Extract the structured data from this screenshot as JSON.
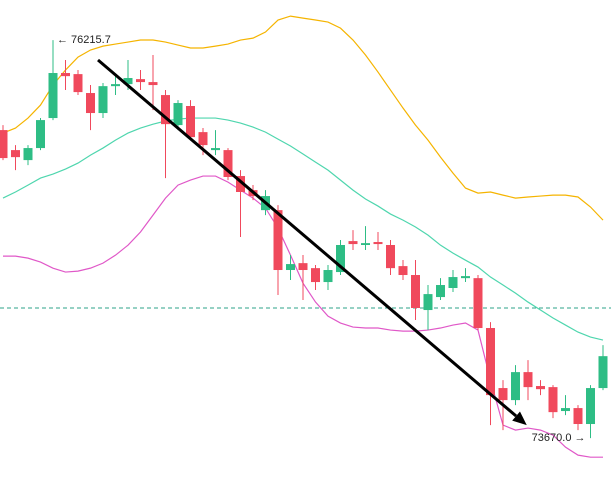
{
  "chart_data": {
    "type": "candlestick",
    "ylim": [
      73338,
      76472
    ],
    "up_color": "#2ebd85",
    "down_color": "#f0495c",
    "open": [
      75640,
      75512,
      75448,
      75525,
      75717,
      76005,
      75998,
      75877,
      75749,
      75921,
      75934,
      75966,
      75947,
      75864,
      75672,
      75794,
      75627,
      75512,
      75512,
      75346,
      75256,
      75128,
      75128,
      74745,
      74789,
      74757,
      74668,
      74732,
      74930,
      74905,
      74924,
      74905,
      74770,
      74713,
      74489,
      74572,
      74630,
      74693,
      74693,
      74374,
      73990,
      73913,
      74092,
      74003,
      73996,
      73843,
      73862,
      73760,
      73990
    ],
    "high": [
      75672,
      75544,
      75544,
      75717,
      76215.7,
      76088,
      76024,
      75928,
      75941,
      75992,
      76088,
      76024,
      76120,
      75896,
      75832,
      75832,
      75653,
      75640,
      75525,
      75384,
      75289,
      75256,
      75160,
      74841,
      74841,
      74777,
      74777,
      74937,
      75000,
      75026,
      74988,
      74937,
      74809,
      74809,
      74649,
      74693,
      74745,
      74757,
      74713,
      74412,
      74041,
      74137,
      74169,
      74041,
      74009,
      73945,
      73881,
      74009,
      74265
    ],
    "low": [
      75448,
      75384,
      75416,
      75512,
      75704,
      75896,
      75864,
      75640,
      75717,
      75864,
      75896,
      75896,
      75768,
      75333,
      75640,
      75576,
      75480,
      75480,
      75320,
      74956,
      75192,
      75096,
      74585,
      74681,
      74553,
      74617,
      74617,
      74713,
      74873,
      74873,
      74873,
      74713,
      74681,
      74425,
      74361,
      74553,
      74604,
      74668,
      74361,
      73753,
      73721,
      73881,
      73913,
      73945,
      73798,
      73817,
      73721,
      73670.0,
      73977
    ],
    "close": [
      75461,
      75467,
      75525,
      75704,
      76005,
      75985,
      75883,
      75749,
      75921,
      75934,
      75973,
      75947,
      75928,
      75678,
      75813,
      75595,
      75544,
      75525,
      75340,
      75244,
      75218,
      75218,
      74745,
      74783,
      74745,
      74668,
      74745,
      74905,
      74911,
      74917,
      74911,
      74757,
      74713,
      74502,
      74591,
      74649,
      74700,
      74706,
      74374,
      73945,
      73913,
      74092,
      73996,
      73983,
      73836,
      73862,
      73760,
      73990,
      74194
    ],
    "series": [
      {
        "color": "#f5b400",
        "values": [
          75621,
          75653,
          75717,
          75800,
          75928,
          76024,
          76107,
          76152,
          76177,
          76190,
          76203,
          76216,
          76216,
          76203,
          76184,
          76165,
          76165,
          76177,
          76190,
          76216,
          76228,
          76267,
          76344,
          76369,
          76356,
          76344,
          76331,
          76292,
          76216,
          76120,
          76011,
          75896,
          75781,
          75672,
          75576,
          75467,
          75365,
          75269,
          75237,
          75244,
          75224,
          75205,
          75212,
          75218,
          75224,
          75224,
          75212,
          75148,
          75064
        ]
      },
      {
        "color": "#4fd6ae",
        "values": [
          75205,
          75244,
          75288,
          75333,
          75359,
          75391,
          75429,
          75480,
          75525,
          75576,
          75621,
          75653,
          75678,
          75698,
          75710,
          75717,
          75717,
          75717,
          75704,
          75685,
          75659,
          75627,
          75582,
          75538,
          75487,
          75435,
          75384,
          75320,
          75256,
          75199,
          75154,
          75103,
          75064,
          75020,
          74968,
          74904,
          74853,
          74808,
          74764,
          74700,
          74649,
          74597,
          74540,
          74489,
          74438,
          74393,
          74348,
          74316,
          74297
        ]
      },
      {
        "color": "#e058c8",
        "values": [
          74834,
          74834,
          74821,
          74796,
          74757,
          74732,
          74738,
          74757,
          74789,
          74840,
          74904,
          74988,
          75096,
          75205,
          75288,
          75320,
          75346,
          75346,
          75307,
          75256,
          75205,
          75141,
          75013,
          74840,
          74661,
          74540,
          74450,
          74406,
          74380,
          74374,
          74374,
          74361,
          74354,
          74354,
          74361,
          74374,
          74393,
          74406,
          74361,
          74041,
          73753,
          73721,
          73734,
          73721,
          73689,
          73612,
          73561,
          73548,
          73548
        ]
      }
    ],
    "price_line": {
      "value": 74502,
      "color": "#2ea38a"
    },
    "trend_arrow": {
      "x": [
        7.6,
        41.9
      ],
      "y": [
        76088,
        73753
      ],
      "color": "#000000"
    },
    "annotations": [
      {
        "text": "← 76215.7",
        "candle": 4,
        "at": "high"
      },
      {
        "text": "73670.0 →",
        "candle": 47,
        "at": "low"
      }
    ]
  }
}
